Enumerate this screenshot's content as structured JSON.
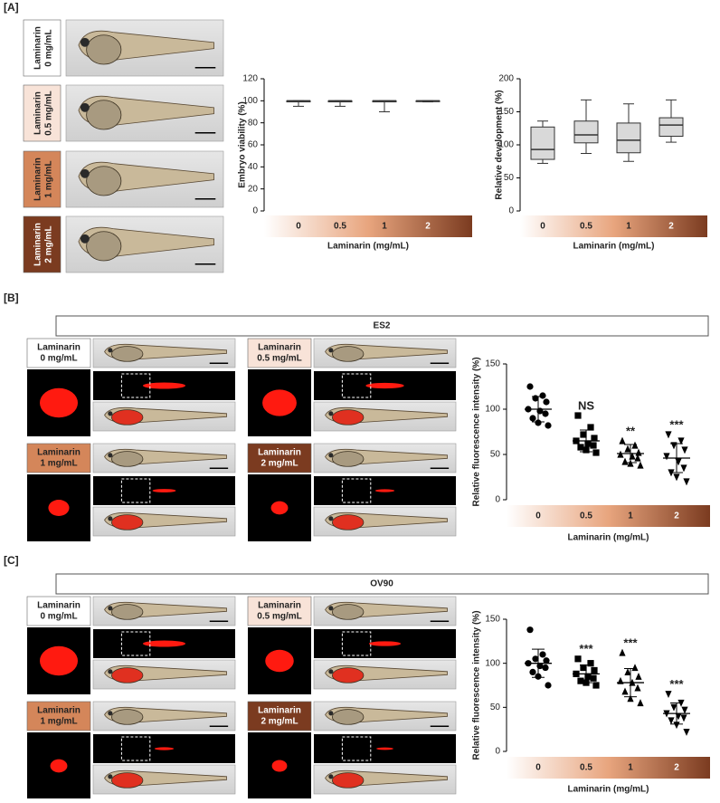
{
  "panels": {
    "a": "[A]",
    "b": "[B]",
    "c": "[C]"
  },
  "groups": [
    "ES2",
    "OV90"
  ],
  "conditions": [
    [
      "Laminarin",
      "0 mg/mL"
    ],
    [
      "Laminarin",
      "0.5 mg/mL"
    ],
    [
      "Laminarin",
      "1 mg/mL"
    ],
    [
      "Laminarin",
      "2 mg/mL"
    ]
  ],
  "condition_colors": [
    "#ffffff",
    "#f8e3d8",
    "#d4865a",
    "#7b3b20"
  ],
  "chart_data": [
    {
      "type": "box",
      "ylabel": "Embryo viability (%)",
      "xlabel": "Laminarin (mg/mL)",
      "categories": [
        "0",
        "0.5",
        "1",
        "2"
      ],
      "min": [
        95,
        95,
        90,
        99
      ],
      "q1": [
        99,
        99,
        99,
        100
      ],
      "median": [
        100,
        100,
        100,
        100
      ],
      "q3": [
        100,
        100,
        100,
        100
      ],
      "max": [
        100,
        100,
        100,
        100
      ],
      "ylim": [
        0,
        120
      ],
      "yticks": [
        0,
        20,
        40,
        60,
        80,
        100,
        120
      ],
      "color": "#d9d9d9"
    },
    {
      "type": "box",
      "ylabel": "Relative development (%)",
      "xlabel": "Laminarin (mg/mL)",
      "categories": [
        "0",
        "0.5",
        "1",
        "2"
      ],
      "min": [
        72,
        87,
        75,
        104
      ],
      "q1": [
        78,
        103,
        88,
        113
      ],
      "median": [
        93,
        115,
        107,
        130
      ],
      "q3": [
        127,
        136,
        133,
        141
      ],
      "max": [
        136,
        168,
        162,
        168
      ],
      "ylim": [
        0,
        200
      ],
      "yticks": [
        0,
        50,
        100,
        150,
        200
      ],
      "color": "#d9d9d9"
    },
    {
      "type": "scatter",
      "ylabel": "Relative fluorescence intensity (%)",
      "xlabel": "Laminarin (mg/mL)",
      "categories": [
        "0",
        "0.5",
        "1",
        "2"
      ],
      "points": [
        [
          125,
          115,
          112,
          108,
          100,
          98,
          95,
          90,
          85,
          82
        ],
        [
          93,
          80,
          72,
          68,
          65,
          62,
          60,
          58,
          55,
          52
        ],
        [
          65,
          60,
          56,
          52,
          50,
          48,
          46,
          42,
          40,
          38
        ],
        [
          72,
          65,
          60,
          55,
          48,
          42,
          35,
          30,
          25,
          20
        ]
      ],
      "mean": [
        100,
        65,
        51,
        46
      ],
      "sd": [
        14,
        12,
        10,
        16
      ],
      "annotations": [
        null,
        "NS",
        "**",
        "***"
      ],
      "ylim": [
        0,
        150
      ],
      "yticks": [
        0,
        50,
        100,
        150
      ],
      "color": "#000000"
    },
    {
      "type": "scatter",
      "ylabel": "Relative fluorescence intensity (%)",
      "xlabel": "Laminarin (mg/mL)",
      "categories": [
        "0",
        "0.5",
        "1",
        "2"
      ],
      "points": [
        [
          138,
          110,
          105,
          103,
          100,
          97,
          95,
          90,
          85,
          75
        ],
        [
          105,
          100,
          95,
          92,
          88,
          85,
          83,
          80,
          78,
          75
        ],
        [
          112,
          95,
          90,
          85,
          80,
          78,
          72,
          68,
          60,
          55
        ],
        [
          65,
          55,
          50,
          47,
          43,
          40,
          38,
          35,
          30,
          22
        ]
      ],
      "mean": [
        100,
        88,
        78,
        43
      ],
      "sd": [
        16,
        10,
        16,
        12
      ],
      "annotations": [
        null,
        "***",
        "***",
        "***"
      ],
      "ylim": [
        0,
        150
      ],
      "yticks": [
        0,
        50,
        100,
        150
      ],
      "color": "#000000"
    }
  ]
}
